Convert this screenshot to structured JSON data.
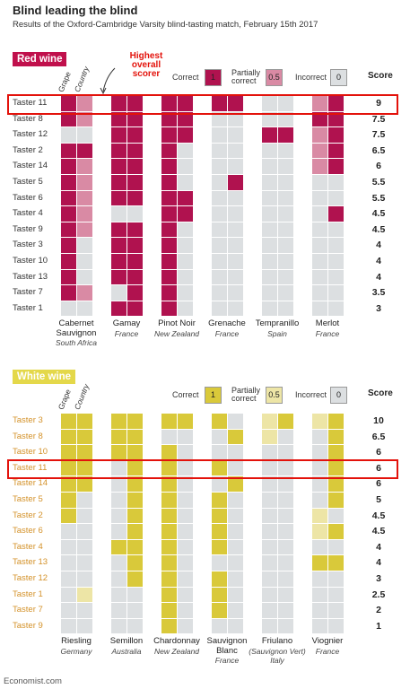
{
  "title": "Blind leading the blind",
  "subtitle": "Results of the Oxford-Cambridge Varsity blind-tasting match, February 15th 2017",
  "source": "Economist.com",
  "chart_data": [
    {
      "type": "heatmap",
      "title": "Red wine",
      "title_color": "#c0104c",
      "annotation": "Highest overall scorer",
      "annotation_color": "#e3120b",
      "legend": [
        {
          "label": "Correct",
          "value": 1,
          "color": "#b0124f"
        },
        {
          "label": "Partially correct",
          "value": 0.5,
          "color": "#d98aa4"
        },
        {
          "label": "Incorrect",
          "value": 0,
          "color": "#dcdfe1"
        }
      ],
      "column_labels": [
        "Grape",
        "Country"
      ],
      "score_label": "Score",
      "taster_color": "#333333",
      "highlight": "Taster 11",
      "highlight_color": "#e3120b",
      "tasters": [
        "Taster 11",
        "Taster 8",
        "Taster 12",
        "Taster 2",
        "Taster 14",
        "Taster 5",
        "Taster 6",
        "Taster 4",
        "Taster 9",
        "Taster 3",
        "Taster 10",
        "Taster 13",
        "Taster 7",
        "Taster 1"
      ],
      "scores": [
        9,
        7.5,
        7.5,
        6.5,
        6,
        5.5,
        5.5,
        4.5,
        4.5,
        4,
        4,
        4,
        3.5,
        3
      ],
      "wines": [
        {
          "name": "Cabernet Sauvignon",
          "origin": "South Africa",
          "grape": [
            1,
            1,
            0,
            1,
            1,
            1,
            1,
            1,
            1,
            1,
            1,
            1,
            1,
            0
          ],
          "country": [
            0.5,
            0.5,
            0,
            1,
            0.5,
            0.5,
            0.5,
            0.5,
            0.5,
            0,
            0,
            0,
            0.5,
            0
          ]
        },
        {
          "name": "Gamay",
          "origin": "France",
          "grape": [
            1,
            1,
            1,
            1,
            1,
            1,
            1,
            0,
            1,
            1,
            1,
            1,
            0,
            1
          ],
          "country": [
            1,
            1,
            1,
            1,
            1,
            1,
            1,
            0,
            1,
            1,
            1,
            1,
            1,
            1
          ]
        },
        {
          "name": "Pinot Noir",
          "origin": "New Zealand",
          "grape": [
            1,
            1,
            1,
            1,
            1,
            1,
            1,
            1,
            1,
            1,
            1,
            1,
            1,
            1
          ],
          "country": [
            1,
            1,
            1,
            0,
            0,
            0,
            1,
            1,
            0,
            0,
            0,
            0,
            0,
            0
          ]
        },
        {
          "name": "Grenache",
          "origin": "France",
          "grape": [
            1,
            0,
            0,
            0,
            0,
            0,
            0,
            0,
            0,
            0,
            0,
            0,
            0,
            0
          ],
          "country": [
            1,
            0,
            0,
            0,
            0,
            1,
            0,
            0,
            0,
            0,
            0,
            0,
            0,
            0
          ]
        },
        {
          "name": "Tempranillo",
          "origin": "Spain",
          "grape": [
            0,
            0,
            1,
            0,
            0,
            0,
            0,
            0,
            0,
            0,
            0,
            0,
            0,
            0
          ],
          "country": [
            0,
            0,
            1,
            0,
            0,
            0,
            0,
            0,
            0,
            0,
            0,
            0,
            0,
            0
          ]
        },
        {
          "name": "Merlot",
          "origin": "France",
          "grape": [
            0.5,
            1,
            0.5,
            0.5,
            0.5,
            0,
            0,
            0,
            0,
            0,
            0,
            0,
            0,
            0
          ],
          "country": [
            1,
            1,
            1,
            1,
            1,
            0,
            0,
            1,
            0,
            0,
            0,
            0,
            0,
            0
          ]
        }
      ]
    },
    {
      "type": "heatmap",
      "title": "White wine",
      "title_color": "#e4d84a",
      "legend": [
        {
          "label": "Correct",
          "value": 1,
          "color": "#d9c93a"
        },
        {
          "label": "Partially correct",
          "value": 0.5,
          "color": "#ede5a6"
        },
        {
          "label": "Incorrect",
          "value": 0,
          "color": "#dcdfe1"
        }
      ],
      "column_labels": [
        "Grape",
        "Country"
      ],
      "score_label": "Score",
      "taster_color": "#d4922a",
      "highlight": "Taster 11",
      "highlight_color": "#e3120b",
      "tasters": [
        "Taster 3",
        "Taster 8",
        "Taster 10",
        "Taster 11",
        "Taster 14",
        "Taster 5",
        "Taster 2",
        "Taster 6",
        "Taster 4",
        "Taster 13",
        "Taster 12",
        "Taster 1",
        "Taster 7",
        "Taster 9"
      ],
      "scores": [
        10,
        6.5,
        6,
        6,
        6,
        5,
        4.5,
        4.5,
        4,
        4,
        3,
        2.5,
        2,
        1
      ],
      "wines": [
        {
          "name": "Riesling",
          "origin": "Germany",
          "grape": [
            1,
            1,
            1,
            1,
            1,
            1,
            1,
            0,
            0,
            0,
            0,
            0,
            0,
            0
          ],
          "country": [
            1,
            1,
            1,
            1,
            1,
            0,
            0,
            0,
            0,
            0,
            0,
            0.5,
            0,
            0
          ]
        },
        {
          "name": "Semillon",
          "origin": "Australia",
          "grape": [
            1,
            1,
            1,
            0,
            0,
            0,
            0,
            0,
            1,
            0,
            0,
            0,
            0,
            0
          ],
          "country": [
            1,
            1,
            1,
            1,
            1,
            1,
            1,
            1,
            1,
            1,
            1,
            0,
            0,
            0
          ]
        },
        {
          "name": "Chardonnay",
          "origin": "New Zealand",
          "grape": [
            1,
            0,
            1,
            1,
            1,
            1,
            1,
            1,
            1,
            1,
            1,
            1,
            1,
            1
          ],
          "country": [
            1,
            0,
            0,
            0,
            0,
            0,
            0,
            0,
            0,
            0,
            0,
            0,
            0,
            0
          ]
        },
        {
          "name": "Sauvignon Blanc",
          "origin": "France",
          "grape": [
            1,
            0,
            0,
            1,
            0,
            1,
            1,
            1,
            1,
            0,
            1,
            1,
            1,
            0
          ],
          "country": [
            0,
            1,
            0,
            0,
            1,
            0,
            0,
            0,
            0,
            0,
            0,
            0,
            0,
            0
          ]
        },
        {
          "name": "Friulano",
          "origin": "(Sauvignon Vert) Italy",
          "grape": [
            0.5,
            0.5,
            0,
            0,
            0,
            0,
            0,
            0,
            0,
            0,
            0,
            0,
            0,
            0
          ],
          "country": [
            1,
            0,
            0,
            0,
            0,
            0,
            0,
            0,
            0,
            0,
            0,
            0,
            0,
            0
          ]
        },
        {
          "name": "Viognier",
          "origin": "France",
          "grape": [
            0.5,
            0,
            0,
            0,
            0,
            0,
            0.5,
            0.5,
            0,
            1,
            0,
            0,
            0,
            0
          ],
          "country": [
            1,
            1,
            1,
            1,
            1,
            1,
            0,
            1,
            0,
            1,
            0,
            0,
            0,
            0
          ]
        }
      ]
    }
  ]
}
